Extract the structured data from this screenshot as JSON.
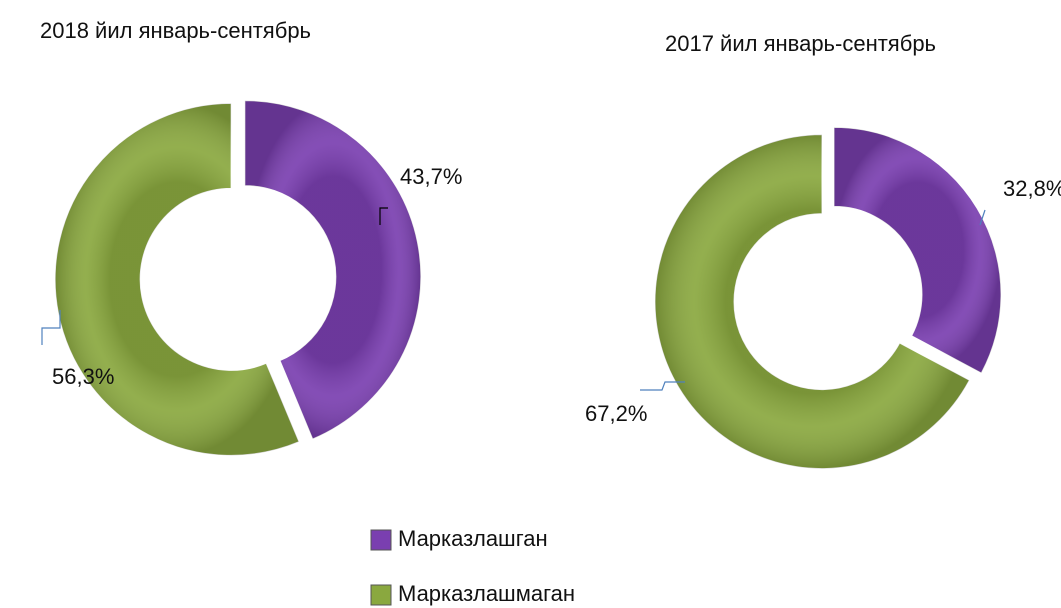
{
  "chart_data": [
    {
      "type": "donut",
      "title": "2018 йил январь-сентябрь",
      "categories": [
        "Марказлашган",
        "Марказлашмаган"
      ],
      "values": [
        43.7,
        56.3
      ],
      "value_labels": [
        "43,7%",
        "56,3%"
      ],
      "colors": [
        "#7a3fb0",
        "#8aa83f"
      ]
    },
    {
      "type": "donut",
      "title": "2017 йил январь-сентябрь",
      "categories": [
        "Марказлашган",
        "Марказлашмаган"
      ],
      "values": [
        32.8,
        67.2
      ],
      "value_labels": [
        "32,8%",
        "67,2%"
      ],
      "colors": [
        "#7a3fb0",
        "#8aa83f"
      ]
    }
  ]
}
